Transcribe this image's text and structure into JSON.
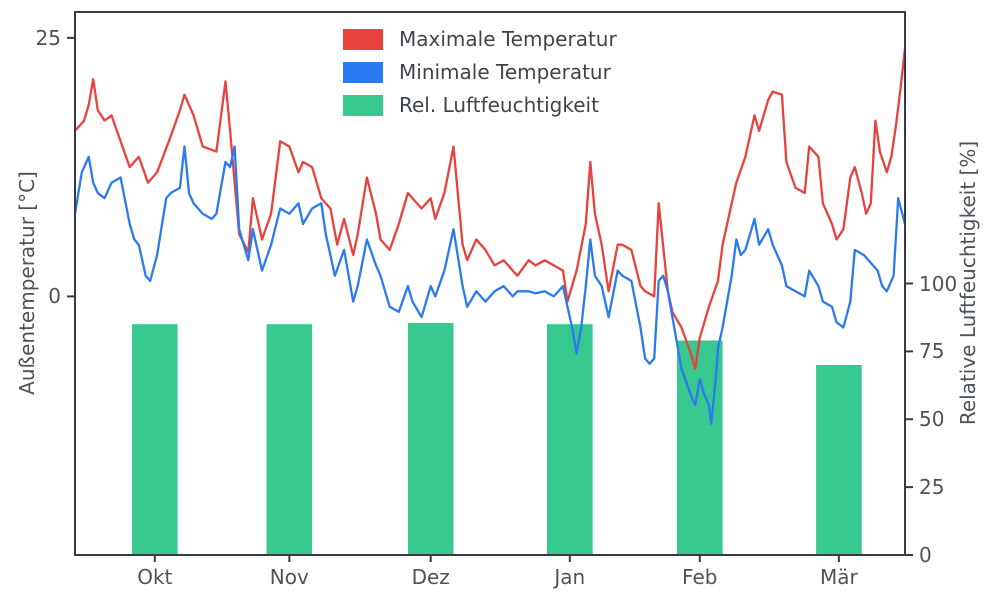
{
  "chart_data": {
    "type": "line+bar",
    "title": "",
    "x_unit": "day_index_from_late_september",
    "x_range": [
      0,
      182
    ],
    "grid": false,
    "legend_position": "upper center",
    "colors": {
      "max_temp": "#e8423e",
      "min_temp": "#2a7af2",
      "humidity": "#37c990",
      "spine": "#363c42",
      "tick_text": "#4d5359",
      "legend_text": "#3f454b",
      "background": "#ffffff"
    },
    "xticks": [
      {
        "day": 17.5,
        "label": "Okt"
      },
      {
        "day": 47,
        "label": "Nov"
      },
      {
        "day": 78,
        "label": "Dez"
      },
      {
        "day": 108.5,
        "label": "Jan"
      },
      {
        "day": 137,
        "label": "Feb"
      },
      {
        "day": 167.5,
        "label": "Mär"
      }
    ],
    "left_axis": {
      "label": "Außentemperatur [°C]",
      "ylim": [
        -25,
        27.5
      ],
      "ticks": [
        0,
        25
      ]
    },
    "right_axis": {
      "label": "Relative Luftfeuchtigkeit [%]",
      "ylim": [
        0,
        200
      ],
      "ticks": [
        0,
        25,
        50,
        75,
        100
      ]
    },
    "series": [
      {
        "name": "Maximale Temperatur",
        "type": "line",
        "axis": "left",
        "color": "#e8423e",
        "points": [
          [
            0,
            16
          ],
          [
            2,
            17
          ],
          [
            3,
            18.5
          ],
          [
            4,
            21
          ],
          [
            5,
            18
          ],
          [
            6.5,
            17
          ],
          [
            8,
            17.5
          ],
          [
            10,
            15
          ],
          [
            12,
            12.5
          ],
          [
            14,
            13.5
          ],
          [
            16,
            11
          ],
          [
            18,
            12
          ],
          [
            21,
            15.5
          ],
          [
            23,
            18
          ],
          [
            24,
            19.5
          ],
          [
            26,
            17.5
          ],
          [
            28,
            14.5
          ],
          [
            31,
            14
          ],
          [
            33,
            20.8
          ],
          [
            34,
            16
          ],
          [
            36,
            6
          ],
          [
            38,
            4.3
          ],
          [
            39,
            9.5
          ],
          [
            41,
            5.5
          ],
          [
            43,
            8
          ],
          [
            45,
            15
          ],
          [
            47,
            14.5
          ],
          [
            49,
            12
          ],
          [
            50,
            13
          ],
          [
            52,
            12.5
          ],
          [
            54,
            9.5
          ],
          [
            56,
            8.5
          ],
          [
            57.5,
            5
          ],
          [
            59,
            7.5
          ],
          [
            61,
            4
          ],
          [
            62,
            6
          ],
          [
            64,
            11.5
          ],
          [
            66,
            8
          ],
          [
            67,
            5.5
          ],
          [
            69,
            4.5
          ],
          [
            71,
            7
          ],
          [
            73,
            10
          ],
          [
            74,
            9.5
          ],
          [
            76,
            8.5
          ],
          [
            78,
            9.5
          ],
          [
            79,
            7.5
          ],
          [
            81,
            10
          ],
          [
            83,
            14.5
          ],
          [
            85,
            5
          ],
          [
            86,
            3.5
          ],
          [
            88,
            5.5
          ],
          [
            90,
            4.5
          ],
          [
            92,
            3
          ],
          [
            94,
            3.5
          ],
          [
            96,
            2.5
          ],
          [
            97,
            2
          ],
          [
            99.5,
            3.5
          ],
          [
            101,
            3
          ],
          [
            103,
            3.5
          ],
          [
            105,
            3
          ],
          [
            107,
            2.5
          ],
          [
            108,
            -0.5
          ],
          [
            110,
            2.5
          ],
          [
            112,
            7
          ],
          [
            113,
            13
          ],
          [
            114,
            8
          ],
          [
            115.5,
            5
          ],
          [
            117,
            0.5
          ],
          [
            119,
            5
          ],
          [
            120,
            5
          ],
          [
            122,
            4.5
          ],
          [
            124,
            1
          ],
          [
            125,
            0.5
          ],
          [
            127,
            0
          ],
          [
            128,
            9
          ],
          [
            130,
            0.5
          ],
          [
            131,
            -1.5
          ],
          [
            133,
            -3
          ],
          [
            135,
            -5.5
          ],
          [
            136,
            -7
          ],
          [
            137,
            -4
          ],
          [
            139,
            -1
          ],
          [
            141,
            1.5
          ],
          [
            142,
            5
          ],
          [
            144,
            9
          ],
          [
            145,
            11
          ],
          [
            147,
            13.5
          ],
          [
            149,
            17.5
          ],
          [
            150,
            16
          ],
          [
            152,
            19
          ],
          [
            153,
            19.8
          ],
          [
            155,
            19.5
          ],
          [
            156,
            13
          ],
          [
            158,
            10.5
          ],
          [
            160,
            10
          ],
          [
            161,
            14.5
          ],
          [
            163,
            13.5
          ],
          [
            164,
            9
          ],
          [
            166,
            7
          ],
          [
            167,
            5.5
          ],
          [
            168.5,
            6.5
          ],
          [
            170,
            11.5
          ],
          [
            171,
            12.5
          ],
          [
            172.5,
            10
          ],
          [
            173.5,
            8
          ],
          [
            174.5,
            9
          ],
          [
            175.5,
            17
          ],
          [
            176.5,
            14
          ],
          [
            178,
            12
          ],
          [
            179,
            13.5
          ],
          [
            180,
            16.5
          ],
          [
            181,
            20
          ],
          [
            182,
            24
          ]
        ]
      },
      {
        "name": "Minimale Temperatur",
        "type": "line",
        "axis": "left",
        "color": "#2a7af2",
        "points": [
          [
            0,
            8
          ],
          [
            1.5,
            12
          ],
          [
            3,
            13.5
          ],
          [
            4,
            11
          ],
          [
            5,
            10
          ],
          [
            6.5,
            9.5
          ],
          [
            8,
            11
          ],
          [
            10,
            11.5
          ],
          [
            12,
            7
          ],
          [
            13,
            5.5
          ],
          [
            14,
            5
          ],
          [
            15.5,
            2
          ],
          [
            16.5,
            1.5
          ],
          [
            18,
            4
          ],
          [
            20,
            9.5
          ],
          [
            21,
            10
          ],
          [
            23,
            10.5
          ],
          [
            24,
            14.5
          ],
          [
            25,
            10
          ],
          [
            26,
            9
          ],
          [
            28,
            8
          ],
          [
            30,
            7.5
          ],
          [
            31,
            8
          ],
          [
            33,
            13
          ],
          [
            34,
            12.5
          ],
          [
            35,
            14.5
          ],
          [
            36,
            6.5
          ],
          [
            37,
            5
          ],
          [
            38,
            3.5
          ],
          [
            39,
            6.5
          ],
          [
            41,
            2.5
          ],
          [
            43,
            5
          ],
          [
            45,
            8.5
          ],
          [
            47,
            8
          ],
          [
            49,
            9
          ],
          [
            50,
            7
          ],
          [
            52,
            8.5
          ],
          [
            54,
            9
          ],
          [
            55,
            6
          ],
          [
            56,
            4
          ],
          [
            57,
            2
          ],
          [
            59,
            4.5
          ],
          [
            61,
            -0.5
          ],
          [
            62,
            1
          ],
          [
            64,
            5.5
          ],
          [
            66,
            3
          ],
          [
            67,
            2
          ],
          [
            69,
            -1
          ],
          [
            71,
            -1.5
          ],
          [
            73,
            1
          ],
          [
            74,
            -0.5
          ],
          [
            76,
            -2
          ],
          [
            78,
            1
          ],
          [
            79,
            0
          ],
          [
            81,
            2.5
          ],
          [
            83,
            6.5
          ],
          [
            85,
            1
          ],
          [
            86,
            -1
          ],
          [
            88,
            0.5
          ],
          [
            90,
            -0.5
          ],
          [
            92,
            0.5
          ],
          [
            94,
            1
          ],
          [
            96,
            0
          ],
          [
            97,
            0.5
          ],
          [
            99.5,
            0.5
          ],
          [
            101,
            0.3
          ],
          [
            103,
            0.5
          ],
          [
            105,
            0
          ],
          [
            107,
            1
          ],
          [
            108,
            -1
          ],
          [
            109,
            -3
          ],
          [
            110,
            -5.5
          ],
          [
            111,
            -3
          ],
          [
            112,
            1
          ],
          [
            113,
            5.5
          ],
          [
            114,
            2
          ],
          [
            115.5,
            1
          ],
          [
            117,
            -2
          ],
          [
            119,
            2.5
          ],
          [
            120,
            2
          ],
          [
            122,
            1.5
          ],
          [
            124,
            -3
          ],
          [
            125,
            -6
          ],
          [
            126,
            -6.5
          ],
          [
            127,
            -6
          ],
          [
            128,
            1.5
          ],
          [
            129,
            2
          ],
          [
            130,
            0.5
          ],
          [
            131,
            -2
          ],
          [
            133,
            -7
          ],
          [
            135,
            -9.5
          ],
          [
            136,
            -10.5
          ],
          [
            137,
            -8
          ],
          [
            138,
            -9.5
          ],
          [
            139,
            -10.5
          ],
          [
            139.5,
            -12.3
          ],
          [
            140.5,
            -8
          ],
          [
            141,
            -5
          ],
          [
            142,
            -3
          ],
          [
            144,
            2
          ],
          [
            145,
            5.5
          ],
          [
            146,
            4
          ],
          [
            147,
            4.5
          ],
          [
            149,
            7.5
          ],
          [
            150,
            5
          ],
          [
            152,
            6.5
          ],
          [
            153,
            5
          ],
          [
            155,
            3
          ],
          [
            156,
            1
          ],
          [
            158,
            0.5
          ],
          [
            160,
            0
          ],
          [
            161,
            2.5
          ],
          [
            163,
            1
          ],
          [
            164,
            -0.5
          ],
          [
            166,
            -1
          ],
          [
            167,
            -2.5
          ],
          [
            168.5,
            -3
          ],
          [
            170,
            -0.5
          ],
          [
            171,
            4.5
          ],
          [
            173,
            4
          ],
          [
            174,
            3.5
          ],
          [
            176,
            2.5
          ],
          [
            177,
            1
          ],
          [
            178,
            0.5
          ],
          [
            179.5,
            2
          ],
          [
            180.5,
            9.5
          ],
          [
            182,
            7
          ]
        ]
      },
      {
        "name": "Rel. Luftfeuchtigkeit",
        "type": "bar",
        "axis": "right",
        "color": "#37c990",
        "bar_width_days": 10,
        "points": [
          [
            17.5,
            85
          ],
          [
            47,
            85
          ],
          [
            78,
            85.5
          ],
          [
            108.5,
            85
          ],
          [
            137,
            79
          ],
          [
            167.5,
            70
          ]
        ]
      }
    ]
  }
}
